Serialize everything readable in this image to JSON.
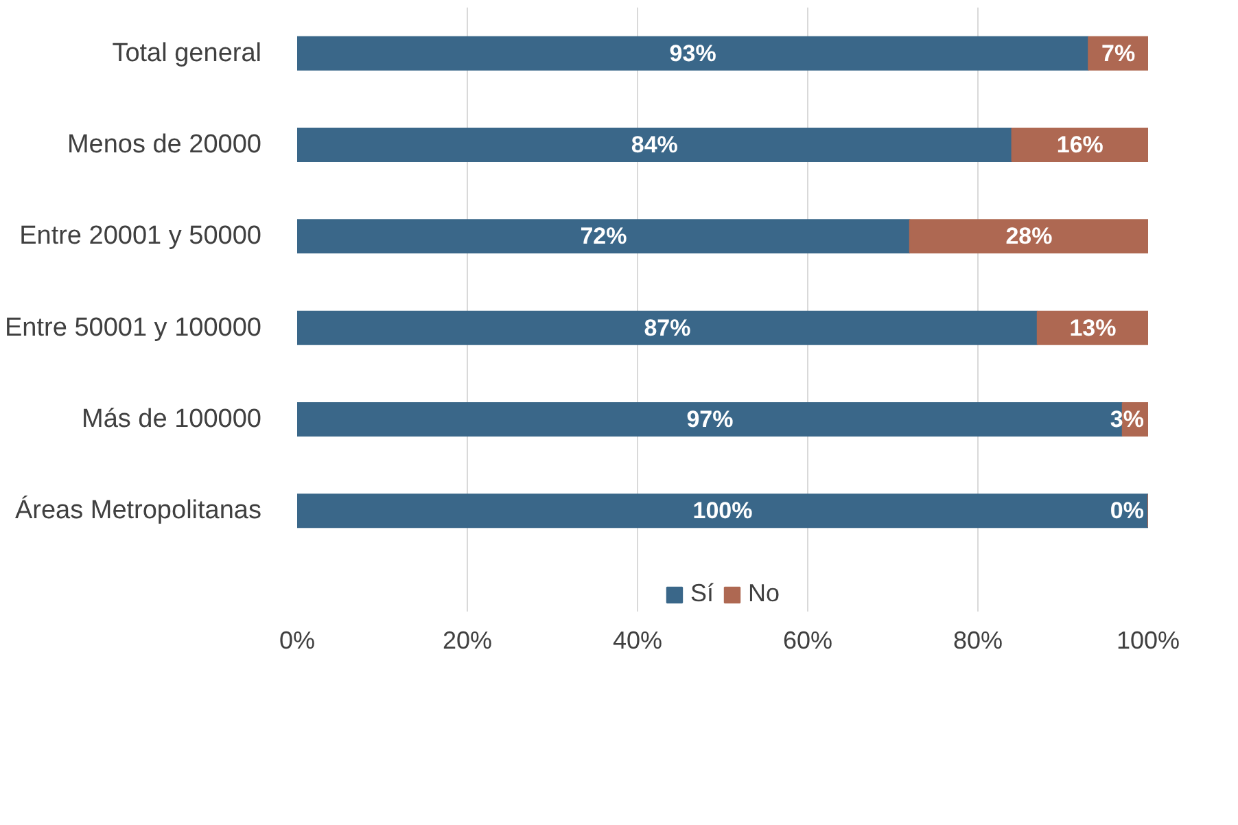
{
  "chart_data": {
    "type": "bar",
    "orientation": "horizontal",
    "stacked": true,
    "categories": [
      "Total general",
      "Menos de 20000",
      "Entre 20001 y 50000",
      "Entre 50001 y 100000",
      "Más de 100000",
      "Áreas Metropolitanas"
    ],
    "series": [
      {
        "name": "Sí",
        "color": "#3a6789",
        "values": [
          93,
          84,
          72,
          87,
          97,
          100
        ],
        "value_labels": [
          "93%",
          "84%",
          "72%",
          "87%",
          "97%",
          "100%"
        ]
      },
      {
        "name": "No",
        "color": "#ae6852",
        "values": [
          7,
          16,
          28,
          13,
          3,
          0
        ],
        "value_labels": [
          "7%",
          "16%",
          "28%",
          "13%",
          "3%",
          "0%"
        ]
      }
    ],
    "xlim": [
      0,
      100
    ],
    "xticks": [
      {
        "value": 0,
        "label": "0%"
      },
      {
        "value": 20,
        "label": "20%"
      },
      {
        "value": 40,
        "label": "40%"
      },
      {
        "value": 60,
        "label": "60%"
      },
      {
        "value": 80,
        "label": "80%"
      },
      {
        "value": 100,
        "label": "100%"
      }
    ],
    "grid": "x",
    "legend": "bottom"
  }
}
